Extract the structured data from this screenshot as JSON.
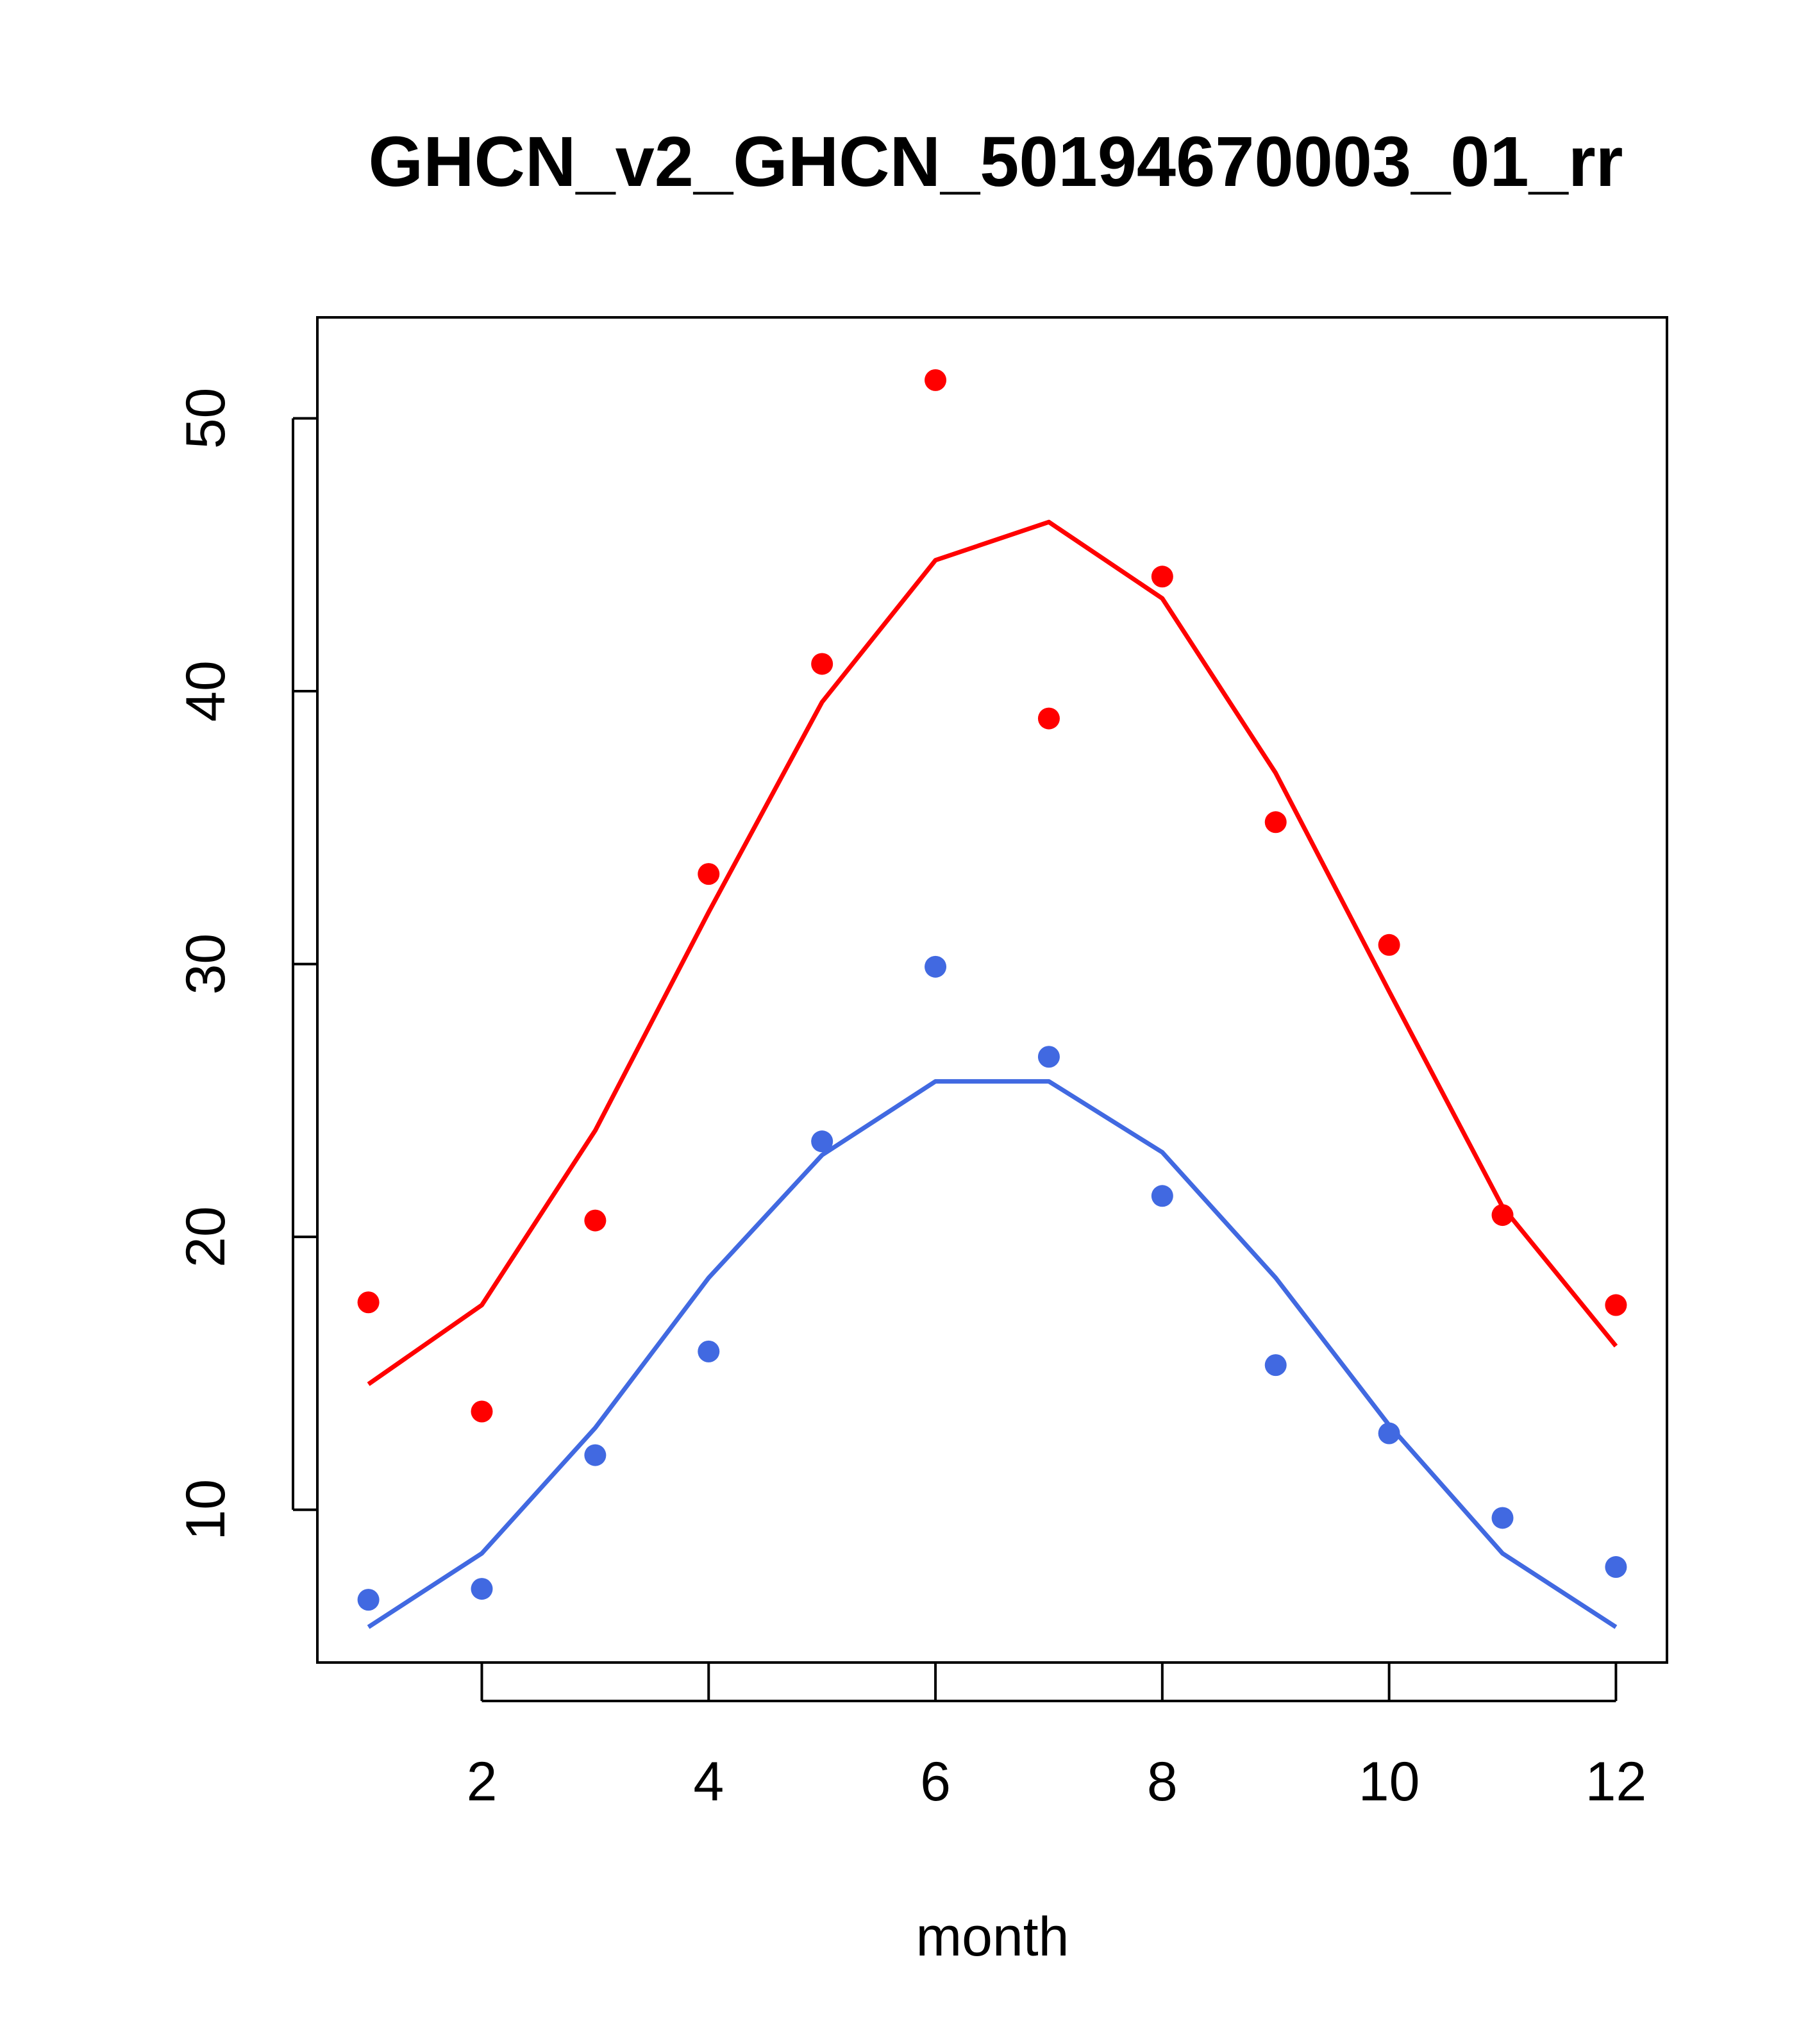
{
  "chart_data": {
    "type": "line",
    "title": "GHCN_v2_GHCN_50194670003_01_rr",
    "xlabel": "month",
    "ylabel": "",
    "xlim": [
      0.55,
      12.45
    ],
    "ylim": [
      4.4,
      53.7
    ],
    "xticks": [
      2,
      4,
      6,
      8,
      10,
      12
    ],
    "yticks": [
      10,
      20,
      30,
      40,
      50
    ],
    "grid": false,
    "x": [
      1,
      2,
      3,
      4,
      5,
      6,
      7,
      8,
      9,
      10,
      11,
      12
    ],
    "series": [
      {
        "color": "#ff0000",
        "points": [
          17.6,
          13.6,
          20.6,
          33.3,
          41.0,
          51.4,
          39.0,
          44.2,
          35.2,
          30.7,
          20.8,
          17.5
        ],
        "line": [
          14.6,
          17.5,
          23.9,
          31.9,
          39.6,
          44.8,
          46.2,
          43.4,
          37.0,
          29.0,
          21.1,
          16.0
        ]
      },
      {
        "color": "#4169e1",
        "points": [
          6.7,
          7.1,
          12.0,
          15.8,
          23.5,
          29.9,
          26.6,
          21.5,
          15.3,
          12.8,
          9.7,
          7.9
        ],
        "line": [
          5.7,
          8.4,
          13.0,
          18.5,
          23.0,
          25.7,
          25.7,
          23.1,
          18.5,
          13.1,
          8.4,
          5.7
        ]
      }
    ]
  }
}
